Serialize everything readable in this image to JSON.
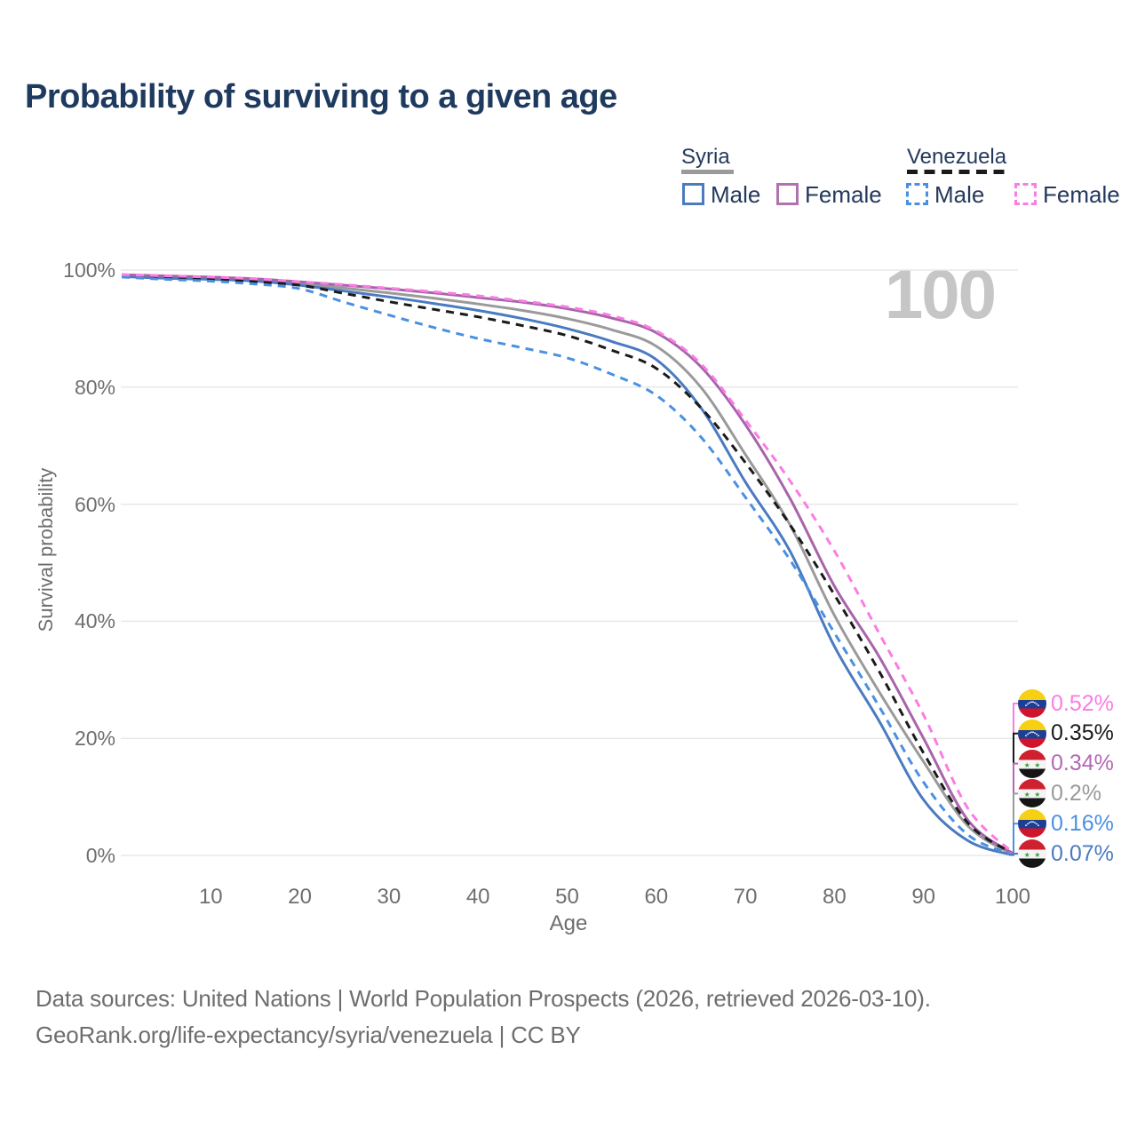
{
  "title": "Probability of surviving to a given age",
  "watermark": "100",
  "legend": {
    "syria_label": "Syria",
    "venezuela_label": "Venezuela",
    "syria_male_label": "Male",
    "syria_female_label": "Female",
    "venezuela_male_label": "Male",
    "venezuela_female_label": "Female"
  },
  "axes": {
    "y_title": "Survival probability",
    "x_title": "Age",
    "y_ticks": [
      "100%",
      "80%",
      "60%",
      "40%",
      "20%",
      "0%"
    ],
    "x_ticks": [
      "10",
      "20",
      "30",
      "40",
      "50",
      "60",
      "70",
      "80",
      "90",
      "100"
    ]
  },
  "footer": {
    "line1": "Data sources: United Nations | World Population Prospects (2026, retrieved 2026-03-10).",
    "line2": "GeoRank.org/life-expectancy/syria/venezuela | CC BY"
  },
  "end_labels": [
    {
      "flag": "venezuela",
      "value": "0.52%",
      "series": "venezuela_female",
      "color": "#fb7ce3"
    },
    {
      "flag": "venezuela",
      "value": "0.35%",
      "series": "venezuela_total",
      "color": "#1a1a1a"
    },
    {
      "flag": "syria",
      "value": "0.34%",
      "series": "syria_female",
      "color": "#b468b4"
    },
    {
      "flag": "syria",
      "value": "0.2%",
      "series": "syria_total",
      "color": "#9a9a9a"
    },
    {
      "flag": "venezuela",
      "value": "0.16%",
      "series": "venezuela_male",
      "color": "#4a90e2"
    },
    {
      "flag": "syria",
      "value": "0.07%",
      "series": "syria_male",
      "color": "#4a7bc0"
    }
  ],
  "chart_data": {
    "type": "line",
    "title": "Probability of surviving to a given age",
    "xlabel": "Age",
    "ylabel": "Survival probability",
    "xlim": [
      0,
      100
    ],
    "ylim": [
      0,
      100
    ],
    "grid": true,
    "y_unit": "%",
    "ages": [
      0,
      5,
      10,
      15,
      20,
      25,
      30,
      35,
      40,
      45,
      50,
      55,
      60,
      65,
      70,
      75,
      80,
      85,
      90,
      95,
      100
    ],
    "series": [
      {
        "key": "syria_total",
        "name": "Syria (both sexes)",
        "country": "Syria",
        "style": "solid",
        "color": "#9a9a9a",
        "values": [
          99.0,
          98.8,
          98.6,
          98.3,
          97.7,
          96.9,
          96.1,
          95.2,
          94.2,
          93.1,
          91.7,
          89.8,
          87.0,
          80.0,
          68.5,
          56.5,
          41.0,
          28.0,
          16.0,
          5.0,
          0.2
        ]
      },
      {
        "key": "syria_male",
        "name": "Syria — Male",
        "country": "Syria",
        "style": "solid",
        "color": "#4a7bc0",
        "values": [
          98.9,
          98.6,
          98.4,
          98.1,
          97.4,
          96.4,
          95.4,
          94.3,
          93.1,
          91.7,
          90.0,
          87.8,
          84.7,
          76.5,
          63.8,
          52.0,
          35.7,
          23.0,
          9.5,
          2.5,
          0.07
        ]
      },
      {
        "key": "syria_female",
        "name": "Syria — Female",
        "country": "Syria",
        "style": "solid",
        "color": "#a864ab",
        "values": [
          99.2,
          99.0,
          98.8,
          98.5,
          98.0,
          97.4,
          96.8,
          96.1,
          95.3,
          94.5,
          93.4,
          91.8,
          89.3,
          83.5,
          73.6,
          61.0,
          46.0,
          34.0,
          20.0,
          6.0,
          0.34
        ]
      },
      {
        "key": "venezuela_total",
        "name": "Venezuela (both sexes)",
        "country": "Venezuela",
        "style": "dashed",
        "color": "#1a1a1a",
        "values": [
          99.0,
          98.7,
          98.4,
          98.0,
          97.4,
          96.0,
          94.6,
          93.3,
          92.0,
          90.5,
          88.8,
          86.3,
          83.2,
          76.5,
          67.1,
          56.5,
          44.5,
          31.5,
          17.5,
          5.5,
          0.35
        ]
      },
      {
        "key": "venezuela_male",
        "name": "Venezuela — Male",
        "country": "Venezuela",
        "style": "dashed",
        "color": "#4a90e2",
        "values": [
          98.8,
          98.4,
          98.1,
          97.6,
          96.8,
          94.5,
          92.3,
          90.2,
          88.3,
          86.7,
          85.0,
          82.2,
          78.6,
          71.5,
          61.2,
          50.5,
          38.0,
          25.5,
          12.5,
          3.5,
          0.16
        ]
      },
      {
        "key": "venezuela_female",
        "name": "Venezuela — Female",
        "country": "Venezuela",
        "style": "dashed",
        "color": "#fb7ce3",
        "values": [
          99.2,
          99.0,
          98.8,
          98.5,
          98.0,
          97.5,
          96.9,
          96.3,
          95.6,
          94.7,
          93.7,
          92.2,
          89.6,
          84.0,
          74.4,
          64.0,
          52.0,
          38.0,
          24.0,
          8.0,
          0.52
        ]
      }
    ],
    "legend_position": "top-right"
  }
}
